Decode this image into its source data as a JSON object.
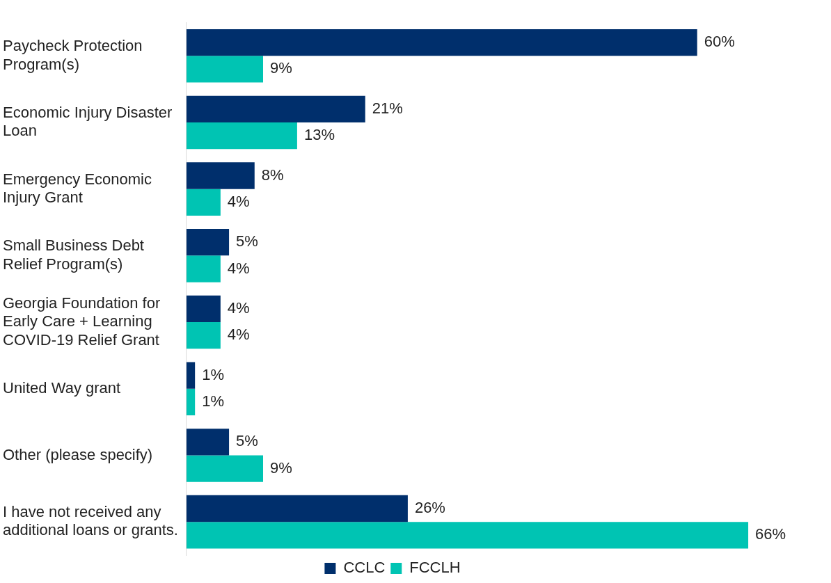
{
  "chart_data": {
    "type": "bar",
    "orientation": "horizontal",
    "categories": [
      "Paycheck Protection Program(s)",
      "Economic Injury Disaster Loan",
      "Emergency Economic Injury Grant",
      "Small Business Debt Relief Program(s)",
      "Georgia Foundation for Early Care + Learning COVID-19 Relief Grant",
      "United Way grant",
      "Other (please specify)",
      "I have not received any additional loans or grants."
    ],
    "series": [
      {
        "name": "CCLC",
        "color": "#002f6c",
        "values": [
          60,
          21,
          8,
          5,
          4,
          1,
          5,
          26
        ],
        "value_labels": [
          "60%",
          "21%",
          "8%",
          "5%",
          "4%",
          "1%",
          "5%",
          "26%"
        ]
      },
      {
        "name": "FCCLH",
        "color": "#00c4b3",
        "values": [
          9,
          13,
          4,
          4,
          4,
          1,
          9,
          66
        ],
        "value_labels": [
          "9%",
          "13%",
          "4%",
          "4%",
          "4%",
          "1%",
          "9%",
          "66%"
        ]
      }
    ],
    "legend": "bottom",
    "tick_labels": "y"
  }
}
